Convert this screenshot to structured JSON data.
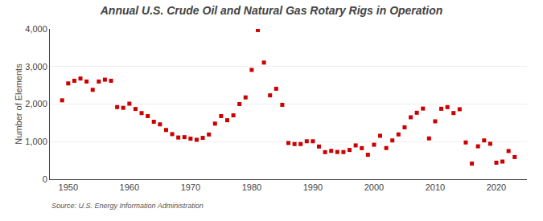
{
  "chart_data": {
    "type": "scatter",
    "title": "Annual U.S. Crude Oil and Natural Gas Rotary Rigs in Operation",
    "ylabel": "Number of Elements",
    "source": "Source: U.S. Energy Information Administration",
    "color": "#cc0000",
    "marker": "square",
    "grid": true,
    "xlim": [
      1947,
      2025
    ],
    "xticks": [
      1950,
      1960,
      1970,
      1980,
      1990,
      2000,
      2010,
      2020
    ],
    "ylim": [
      0,
      4000
    ],
    "yticks": [
      0,
      {
        "value": 1000,
        "label": "1,000"
      },
      {
        "value": 2000,
        "label": "2,000"
      },
      {
        "value": 3000,
        "label": "3,000"
      },
      {
        "value": 4000,
        "label": "4,000"
      }
    ],
    "x": [
      1949,
      1950,
      1951,
      1952,
      1953,
      1954,
      1955,
      1956,
      1957,
      1958,
      1959,
      1960,
      1961,
      1962,
      1963,
      1964,
      1965,
      1966,
      1967,
      1968,
      1969,
      1970,
      1971,
      1972,
      1973,
      1974,
      1975,
      1976,
      1977,
      1978,
      1979,
      1980,
      1981,
      1982,
      1983,
      1984,
      1985,
      1986,
      1987,
      1988,
      1989,
      1990,
      1991,
      1992,
      1993,
      1994,
      1995,
      1996,
      1997,
      1998,
      1999,
      2000,
      2001,
      2002,
      2003,
      2004,
      2005,
      2006,
      2007,
      2008,
      2009,
      2010,
      2011,
      2012,
      2013,
      2014,
      2015,
      2016,
      2017,
      2018,
      2019,
      2020,
      2021,
      2022,
      2023
    ],
    "values": [
      2100,
      2550,
      2620,
      2680,
      2600,
      2380,
      2600,
      2650,
      2620,
      1920,
      1900,
      2010,
      1870,
      1760,
      1680,
      1530,
      1460,
      1310,
      1200,
      1110,
      1120,
      1080,
      1050,
      1100,
      1190,
      1480,
      1680,
      1570,
      1700,
      2000,
      2177,
      2909,
      3970,
      3105,
      2232,
      2408,
      1980,
      964,
      936,
      936,
      1010,
      1010,
      870,
      720,
      754,
      725,
      723,
      779,
      900,
      827,
      650,
      918,
      1156,
      830,
      1032,
      1192,
      1381,
      1649,
      1769,
      1880,
      1086,
      1541,
      1875,
      1919,
      1761,
      1862,
      978,
      416,
      876,
      1032,
      944,
      440,
      470,
      750,
      590
    ]
  }
}
